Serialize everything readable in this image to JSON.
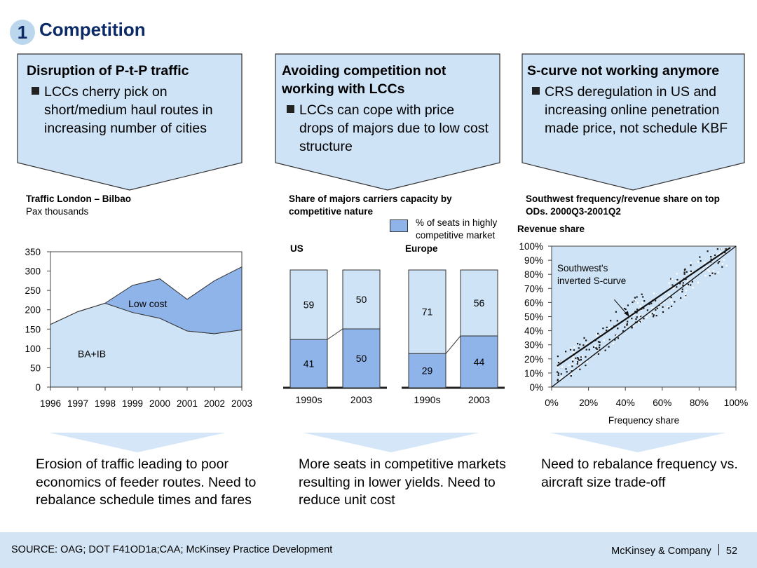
{
  "header": {
    "number": "1",
    "title": "Competition"
  },
  "panels": [
    {
      "heading": "Disruption of P-t-P traffic",
      "bullet": "LCCs cherry pick on short/medium haul routes in increasing number of cities"
    },
    {
      "heading": "Avoiding competition not working with LCCs",
      "bullet": "LCCs can cope with price drops of majors due to low cost structure"
    },
    {
      "heading": "S-curve not working anymore",
      "bullet": "CRS deregulation in US and increasing online penetration made price, not schedule KBF"
    }
  ],
  "conclusions": [
    "Erosion of traffic leading to poor economics of feeder routes. Need to rebalance schedule times and fares",
    "More seats in competitive markets resulting in lower yields. Need to reduce unit cost",
    "Need to rebalance frequency vs. aircraft size trade-off"
  ],
  "footer": {
    "source": "SOURCE: OAG; DOT F41OD1a;CAA; McKinsey Practice Development",
    "company": "McKinsey & Company",
    "page": "52"
  },
  "colors": {
    "light_blue": "#cfe3f6",
    "mid_blue": "#8fb4ea",
    "navy": "#0b2a66",
    "footer_bg": "#d3e4f4",
    "panel_fill": "#cfe3f6"
  },
  "chart_data": [
    {
      "type": "area",
      "title": "Traffic London – Bilbao",
      "subtitle": "Pax thousands",
      "x": [
        "1996",
        "1997",
        "1998",
        "1999",
        "2000",
        "2001",
        "2002",
        "2003"
      ],
      "ylim": [
        0,
        350
      ],
      "yticks": [
        0,
        50,
        100,
        150,
        200,
        250,
        300,
        350
      ],
      "series": [
        {
          "name": "BA+IB",
          "values": [
            162,
            195,
            217,
            193,
            178,
            145,
            138,
            148
          ]
        },
        {
          "name": "Low cost",
          "values": [
            0,
            0,
            0,
            70,
            102,
            82,
            137,
            163
          ]
        }
      ],
      "annotations": {
        "total": [
          162,
          195,
          217,
          263,
          280,
          227,
          275,
          311
        ]
      }
    },
    {
      "type": "bar",
      "title": "Share of majors carriers capacity by competitive nature",
      "legend": "% of seats in highly competitive market",
      "stacked_percent": true,
      "groups": [
        {
          "name": "US",
          "categories": [
            "1990s",
            "2003"
          ],
          "competitive": [
            41,
            50
          ],
          "other": [
            59,
            50
          ]
        },
        {
          "name": "Europe",
          "categories": [
            "1990s",
            "2003"
          ],
          "competitive": [
            29,
            44
          ],
          "other": [
            71,
            56
          ]
        }
      ]
    },
    {
      "type": "scatter",
      "title": "Southwest frequency/revenue share on top ODs. 2000Q3-2001Q2",
      "xlabel": "Frequency share",
      "ylabel": "Revenue share",
      "xlim": [
        0,
        100
      ],
      "ylim": [
        0,
        100
      ],
      "xticks": [
        "0%",
        "20%",
        "40%",
        "60%",
        "80%",
        "100%"
      ],
      "yticks": [
        "0%",
        "10%",
        "20%",
        "30%",
        "40%",
        "50%",
        "60%",
        "70%",
        "80%",
        "90%",
        "100%"
      ],
      "annotation": "Southwest's inverted S-curve",
      "lines": [
        {
          "name": "fit",
          "points": [
            [
              3,
              15
            ],
            [
              97,
              99
            ]
          ]
        },
        {
          "name": "diagonal",
          "points": [
            [
              0,
              0
            ],
            [
              100,
              100
            ]
          ]
        }
      ],
      "points_note": "approximate scatter cloud along the diagonal"
    }
  ]
}
